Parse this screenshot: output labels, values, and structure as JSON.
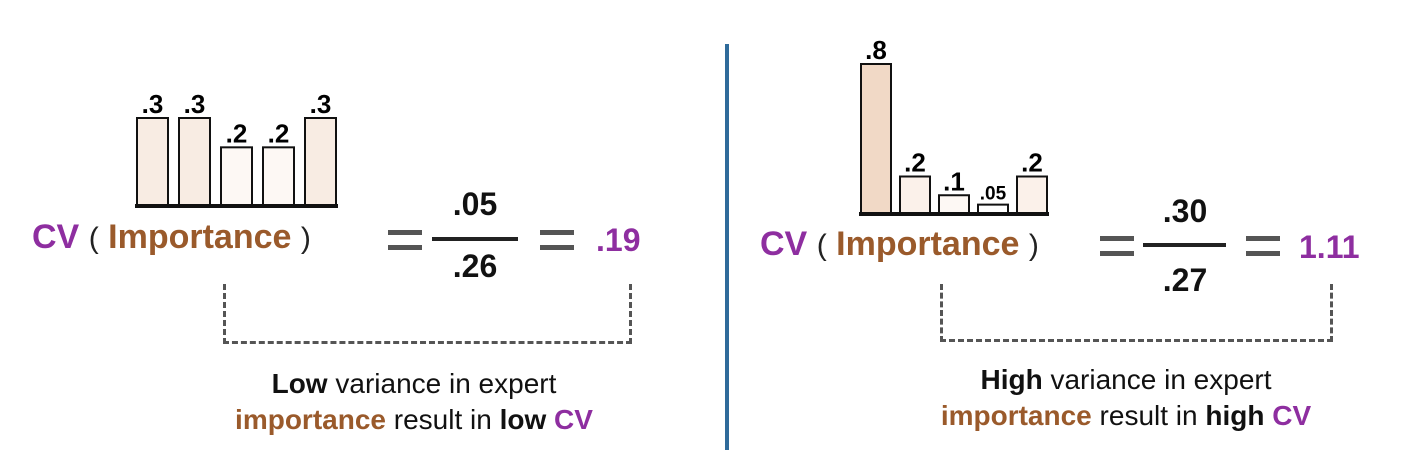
{
  "left": {
    "bars": [
      {
        "label": ".3",
        "value": 0.3,
        "shade": "#f8ece3"
      },
      {
        "label": ".3",
        "value": 0.3,
        "shade": "#f8ece3"
      },
      {
        "label": ".2",
        "value": 0.2,
        "shade": "#fdf8f4"
      },
      {
        "label": ".2",
        "value": 0.2,
        "shade": "#fdf8f4"
      },
      {
        "label": ".3",
        "value": 0.3,
        "shade": "#f8ece3"
      }
    ],
    "formula": {
      "cv": "CV",
      "open": "(",
      "arg": "Importance",
      "close": ")"
    },
    "numerator": ".05",
    "denominator": ".26",
    "result": ".19",
    "caption": {
      "line1_bold": "Low",
      "line1_rest": " variance in expert",
      "line2_brown": "importance",
      "line2_mid": " result in ",
      "line2_bold": "low",
      "line2_space": " ",
      "line2_cv": "CV"
    }
  },
  "right": {
    "bars": [
      {
        "label": ".8",
        "value": 0.8,
        "shade": "#f1d9c6"
      },
      {
        "label": ".2",
        "value": 0.2,
        "shade": "#fbf1ea"
      },
      {
        "label": ".1",
        "value": 0.1,
        "shade": "#fdf8f4"
      },
      {
        "label": ".05",
        "value": 0.05,
        "shade": "#ffffff"
      },
      {
        "label": ".2",
        "value": 0.2,
        "shade": "#fbf1ea"
      }
    ],
    "formula": {
      "cv": "CV",
      "open": "(",
      "arg": "Importance",
      "close": ")"
    },
    "numerator": ".30",
    "denominator": ".27",
    "result": "1.11",
    "caption": {
      "line1_bold": "High",
      "line1_rest": " variance in expert",
      "line2_brown": "importance",
      "line2_mid": " result in ",
      "line2_bold": "high",
      "line2_space": " ",
      "line2_cv": "CV"
    }
  },
  "colors": {
    "purple": "#8e2ea0",
    "brown": "#9a5a2b",
    "divider": "#2f6b9a"
  }
}
